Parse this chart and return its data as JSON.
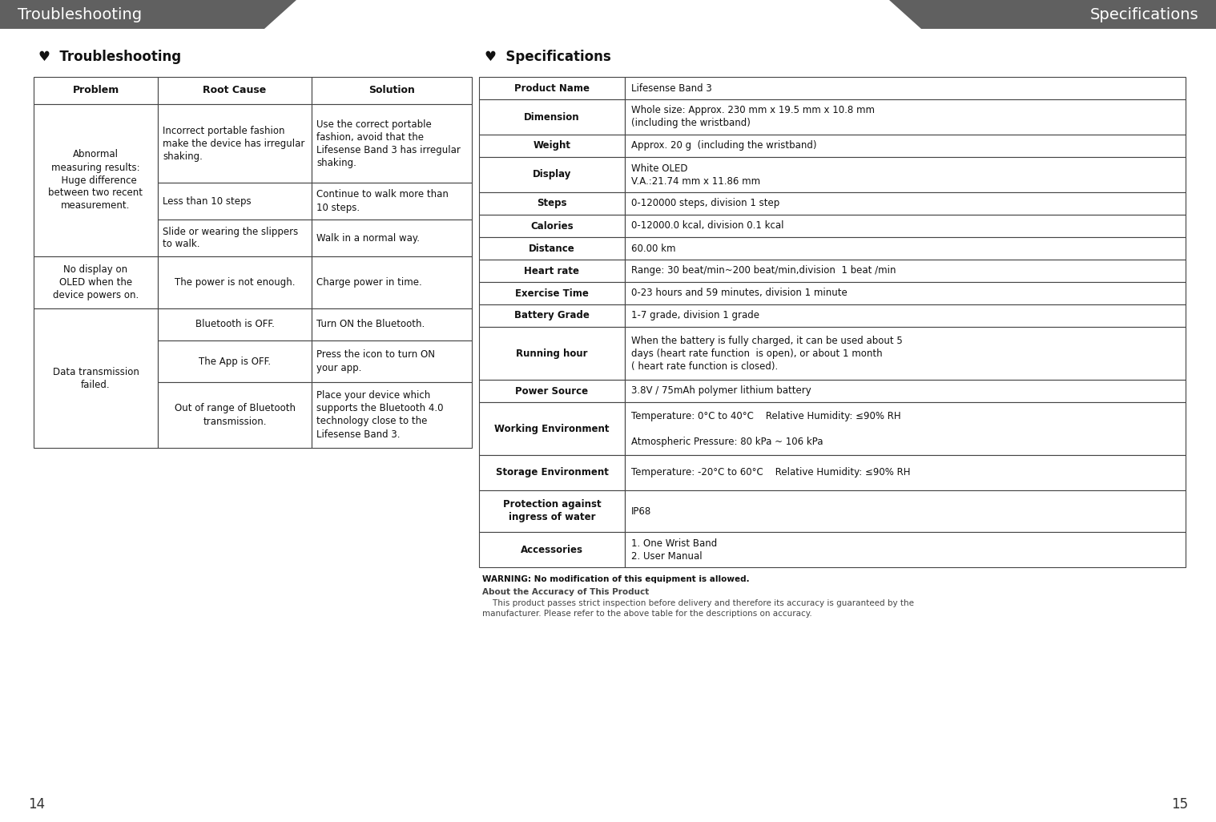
{
  "bg_color": "#ffffff",
  "header_color": "#606060",
  "header_text_color": "#ffffff",
  "header_left_text": "Troubleshooting",
  "header_right_text": "Specifications",
  "page_left": "14",
  "page_right": "15",
  "section_left_title": "♥  Troubleshooting",
  "section_right_title": "♥  Specifications",
  "trouble_header": [
    "Problem",
    "Root Cause",
    "Solution"
  ],
  "trouble_rows": [
    {
      "problem": "Abnormal\nmeasuring results:\n  Huge difference\nbetween two recent\nmeasurement.",
      "root_causes": [
        "Incorrect portable fashion\nmake the device has irregular\nshaking.",
        "Less than 10 steps",
        "Slide or wearing the slippers\nto walk."
      ],
      "solutions": [
        "Use the correct portable\nfashion, avoid that the\nLifesense Band 3 has irregular\nshaking.",
        "Continue to walk more than\n10 steps.",
        "Walk in a normal way."
      ]
    },
    {
      "problem": "No display on\nOLED when the\ndevice powers on.",
      "root_causes": [
        "The power is not enough."
      ],
      "solutions": [
        "Charge power in time."
      ]
    },
    {
      "problem": "Data transmission\nfailed.",
      "root_causes": [
        "Bluetooth is OFF.",
        "The App is OFF.",
        "Out of range of Bluetooth\ntransmission."
      ],
      "solutions": [
        "Turn ON the Bluetooth.",
        "Press the icon to turn ON\nyour app.",
        "Place your device which\nsupports the Bluetooth 4.0\ntechnology close to the\nLifesense Band 3."
      ]
    }
  ],
  "spec_rows": [
    [
      "Product Name",
      "Lifesense Band 3"
    ],
    [
      "Dimension",
      "Whole size: Approx. 230 mm x 19.5 mm x 10.8 mm\n(including the wristband)"
    ],
    [
      "Weight",
      "Approx. 20 g  (including the wristband)"
    ],
    [
      "Display",
      "White OLED\nV.A.:21.74 mm x 11.86 mm"
    ],
    [
      "Steps",
      "0-120000 steps, division 1 step"
    ],
    [
      "Calories",
      "0-12000.0 kcal, division 0.1 kcal"
    ],
    [
      "Distance",
      "60.00 km"
    ],
    [
      "Heart rate",
      "Range: 30 beat/min~200 beat/min,division  1 beat /min"
    ],
    [
      "Exercise Time",
      "0-23 hours and 59 minutes, division 1 minute"
    ],
    [
      "Battery Grade",
      "1-7 grade, division 1 grade"
    ],
    [
      "Running hour",
      "When the battery is fully charged, it can be used about 5\ndays (heart rate function  is open), or about 1 month\n( heart rate function is closed)."
    ],
    [
      "Power Source",
      "3.8V / 75mAh polymer lithium battery"
    ],
    [
      "Working Environment",
      "Temperature: 0°C to 40°C    Relative Humidity: ≤90% RH\n\nAtmospheric Pressure: 80 kPa ~ 106 kPa"
    ],
    [
      "Storage Environment",
      "Temperature: -20°C to 60°C    Relative Humidity: ≤90% RH"
    ],
    [
      "Protection against\ningress of water",
      "IP68"
    ],
    [
      "Accessories",
      "1. One Wrist Band\n2. User Manual"
    ]
  ],
  "warning_text": "WARNING: No modification of this equipment is allowed.",
  "accuracy_title": "About the Accuracy of This Product",
  "accuracy_body": "    This product passes strict inspection before delivery and therefore its accuracy is guaranteed by the\nmanufacturer. Please refer to the above table for the descriptions on accuracy."
}
